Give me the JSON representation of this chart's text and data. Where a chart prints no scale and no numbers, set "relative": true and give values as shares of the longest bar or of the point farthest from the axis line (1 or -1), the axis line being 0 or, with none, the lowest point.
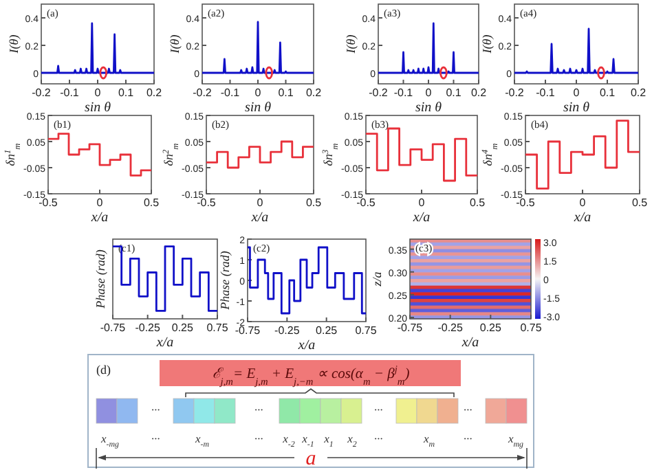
{
  "chart_data": [
    {
      "type": "line",
      "title": "(a)",
      "xlabel": "sin θ",
      "ylabel": "I(θ)",
      "xlim": [
        -0.2,
        0.2
      ],
      "ylim": [
        -0.08,
        0.5
      ],
      "xticks": [
        -0.2,
        -0.1,
        0,
        0.1,
        0.2
      ],
      "yticks": [
        0,
        0.2,
        0.4
      ],
      "series": [
        {
          "color": "#1010c8",
          "x": [
            -0.2,
            -0.143,
            -0.14,
            -0.137,
            -0.083,
            -0.08,
            -0.077,
            -0.063,
            -0.06,
            -0.057,
            -0.043,
            -0.04,
            -0.037,
            -0.023,
            -0.02,
            -0.017,
            -0.003,
            0,
            0.003,
            0.037,
            0.04,
            0.043,
            0.057,
            0.06,
            0.063,
            0.077,
            0.08,
            0.083,
            0.2
          ],
          "values": [
            0,
            0,
            0.05,
            0,
            0,
            0.02,
            0,
            0,
            0.03,
            0,
            0,
            0.03,
            0,
            0,
            0.36,
            0,
            0,
            0.03,
            0,
            0,
            0.03,
            0,
            0,
            0.28,
            0,
            0,
            0.02,
            0,
            0
          ]
        },
        {
          "type": "scatter",
          "marker": "circle",
          "color": "#e8303a",
          "x": [
            0.02
          ],
          "values": [
            0
          ]
        }
      ]
    },
    {
      "type": "line",
      "title": "(a2)",
      "xlabel": "sin θ",
      "ylabel": "I(θ)",
      "xlim": [
        -0.2,
        0.2
      ],
      "ylim": [
        -0.08,
        0.5
      ],
      "xticks": [
        -0.2,
        -0.1,
        0,
        0.1,
        0.2
      ],
      "yticks": [
        0,
        0.2,
        0.4
      ],
      "series": [
        {
          "color": "#1010c8",
          "x": [
            -0.2,
            -0.123,
            -0.12,
            -0.117,
            -0.063,
            -0.06,
            -0.057,
            -0.043,
            -0.04,
            -0.037,
            -0.023,
            -0.02,
            -0.017,
            -0.003,
            0,
            0.003,
            0.017,
            0.02,
            0.023,
            0.057,
            0.06,
            0.063,
            0.077,
            0.08,
            0.083,
            0.097,
            0.1,
            0.103,
            0.2
          ],
          "values": [
            0,
            0,
            0.1,
            0,
            0,
            0.02,
            0,
            0,
            0.03,
            0,
            0,
            0.04,
            0,
            0,
            0.37,
            0,
            0,
            0.03,
            0,
            0,
            0.02,
            0,
            0,
            0.22,
            0,
            0,
            0.01,
            0,
            0
          ]
        },
        {
          "type": "scatter",
          "marker": "circle",
          "color": "#e8303a",
          "x": [
            0.04
          ],
          "values": [
            0
          ]
        }
      ]
    },
    {
      "type": "line",
      "title": "(a3)",
      "xlabel": "sin θ",
      "ylabel": "I(θ)",
      "xlim": [
        -0.2,
        0.2
      ],
      "ylim": [
        -0.08,
        0.5
      ],
      "xticks": [
        -0.2,
        -0.1,
        0,
        0.1,
        0.2
      ],
      "yticks": [
        0,
        0.2,
        0.4
      ],
      "series": [
        {
          "color": "#1010c8",
          "x": [
            -0.2,
            -0.103,
            -0.1,
            -0.097,
            -0.083,
            -0.08,
            -0.077,
            -0.063,
            -0.06,
            -0.057,
            -0.043,
            -0.04,
            -0.037,
            -0.023,
            -0.02,
            -0.017,
            -0.003,
            0,
            0.003,
            0.017,
            0.02,
            0.023,
            0.037,
            0.04,
            0.043,
            0.077,
            0.08,
            0.083,
            0.097,
            0.1,
            0.103,
            0.2
          ],
          "values": [
            0,
            0,
            0.15,
            0,
            0,
            0.02,
            0,
            0,
            0.02,
            0,
            0,
            0.03,
            0,
            0,
            0.03,
            0,
            0,
            0.04,
            0,
            0,
            0.36,
            0,
            0,
            0.03,
            0,
            0,
            0.01,
            0,
            0,
            0.15,
            0,
            0
          ]
        },
        {
          "type": "scatter",
          "marker": "circle",
          "color": "#e8303a",
          "x": [
            0.06
          ],
          "values": [
            0
          ]
        }
      ]
    },
    {
      "type": "line",
      "title": "(a4)",
      "xlabel": "sin θ",
      "ylabel": "I(θ)",
      "xlim": [
        -0.2,
        0.2
      ],
      "ylim": [
        -0.08,
        0.5
      ],
      "xticks": [
        -0.2,
        -0.1,
        0,
        0.1,
        0.2
      ],
      "yticks": [
        0,
        0.2,
        0.4
      ],
      "series": [
        {
          "color": "#1010c8",
          "x": [
            -0.2,
            -0.163,
            -0.16,
            -0.157,
            -0.083,
            -0.08,
            -0.077,
            -0.063,
            -0.06,
            -0.057,
            -0.043,
            -0.04,
            -0.037,
            -0.023,
            -0.02,
            -0.017,
            -0.003,
            0,
            0.003,
            0.017,
            0.02,
            0.023,
            0.037,
            0.04,
            0.043,
            0.057,
            0.06,
            0.063,
            0.097,
            0.1,
            0.103,
            0.117,
            0.12,
            0.123,
            0.2
          ],
          "values": [
            0,
            0,
            0.01,
            0,
            0,
            0.21,
            0,
            0,
            0.03,
            0,
            0,
            0.02,
            0,
            0,
            0.03,
            0,
            0,
            0.02,
            0,
            0,
            0.03,
            0,
            0,
            0.32,
            0,
            0,
            0.02,
            0,
            0,
            0.01,
            0,
            0,
            0.1,
            0,
            0
          ]
        },
        {
          "type": "scatter",
          "marker": "circle",
          "color": "#e8303a",
          "x": [
            0.08
          ],
          "values": [
            0
          ]
        }
      ]
    },
    {
      "type": "step",
      "title": "(b1)",
      "xlabel": "x/a",
      "ylabel": "δn$^{1}$$_{m}$",
      "xlim": [
        -0.5,
        0.5
      ],
      "ylim": [
        -0.15,
        0.15
      ],
      "xticks": [
        -0.5,
        0,
        0.5
      ],
      "yticks": [
        -0.15,
        -0.05,
        0.05,
        0.15
      ],
      "x": [
        -0.5,
        -0.4,
        -0.3,
        -0.2,
        -0.1,
        0,
        0.1,
        0.2,
        0.3,
        0.4,
        0.5
      ],
      "series": [
        {
          "color": "#e8303a",
          "values": [
            0.06,
            0.08,
            0,
            0.02,
            0.04,
            -0.04,
            -0.02,
            0,
            -0.08,
            -0.06,
            -0.06
          ]
        }
      ]
    },
    {
      "type": "step",
      "title": "(b2)",
      "xlabel": "x/a",
      "ylabel": "δn$^{2}$$_{m}$",
      "xlim": [
        -0.5,
        0.5
      ],
      "ylim": [
        -0.15,
        0.15
      ],
      "xticks": [
        -0.5,
        0,
        0.5
      ],
      "yticks": [
        -0.15,
        -0.05,
        0.05,
        0.15
      ],
      "x": [
        -0.5,
        -0.4,
        -0.3,
        -0.2,
        -0.1,
        0,
        0.1,
        0.2,
        0.3,
        0.4,
        0.5
      ],
      "series": [
        {
          "color": "#e8303a",
          "values": [
            -0.03,
            0.01,
            -0.05,
            -0.01,
            0.03,
            -0.03,
            0.01,
            0.05,
            -0.01,
            0.03,
            0.03
          ]
        }
      ]
    },
    {
      "type": "step",
      "title": "(b3)",
      "xlabel": "x/a",
      "ylabel": "δn$^{3}$$_{m}$",
      "xlim": [
        -0.5,
        0.5
      ],
      "ylim": [
        -0.15,
        0.15
      ],
      "xticks": [
        -0.5,
        0,
        0.5
      ],
      "yticks": [
        -0.15,
        -0.05,
        0.05,
        0.15
      ],
      "x": [
        -0.5,
        -0.4,
        -0.3,
        -0.2,
        -0.1,
        0,
        0.1,
        0.2,
        0.3,
        0.4,
        0.5
      ],
      "series": [
        {
          "color": "#e8303a",
          "values": [
            0.08,
            -0.06,
            0.1,
            -0.04,
            0.02,
            -0.02,
            0.04,
            -0.1,
            0.06,
            -0.08,
            -0.08
          ]
        }
      ]
    },
    {
      "type": "step",
      "title": "(b4)",
      "xlabel": "x/a",
      "ylabel": "δn$^{4}$$_{m}$",
      "xlim": [
        -0.5,
        0.5
      ],
      "ylim": [
        -0.15,
        0.15
      ],
      "xticks": [
        -0.5,
        0,
        0.5
      ],
      "yticks": [
        -0.15,
        -0.05,
        0.05,
        0.15
      ],
      "x": [
        -0.5,
        -0.4,
        -0.3,
        -0.2,
        -0.1,
        0,
        0.1,
        0.2,
        0.3,
        0.4,
        0.5
      ],
      "series": [
        {
          "color": "#e8303a",
          "values": [
            0,
            -0.13,
            0.05,
            -0.07,
            0.01,
            0,
            0.07,
            -0.05,
            0.13,
            0.01,
            0.01
          ]
        }
      ]
    },
    {
      "type": "step",
      "title": "(c1)",
      "xlabel": "x/a",
      "ylabel": "Phase (rad)",
      "relative": true,
      "xlim": [
        -0.75,
        0.75
      ],
      "xticks": [
        -0.75,
        -0.25,
        0.25,
        0.75
      ],
      "x": [
        -0.75,
        -0.625,
        -0.5,
        -0.375,
        -0.25,
        -0.125,
        0,
        0.125,
        0.25,
        0.375,
        0.5,
        0.625,
        0.75
      ],
      "series": [
        {
          "color": "#1010c8",
          "values": [
            1,
            0.47,
            0.83,
            0.31,
            0.64,
            0.11,
            1,
            0.47,
            0.83,
            0.31,
            0.64,
            0.11,
            0.11
          ]
        }
      ]
    },
    {
      "type": "step",
      "title": "(c2)",
      "xlabel": "x/a",
      "ylabel": "Phase (rad)",
      "xlim": [
        -0.75,
        0.75
      ],
      "ylim": [
        -2,
        2
      ],
      "xticks": [
        -0.75,
        -0.25,
        0.25,
        0.75
      ],
      "yticks": [
        2,
        1,
        0,
        -1,
        -2
      ],
      "x": [
        -0.75,
        -0.72,
        -0.62,
        -0.53,
        -0.49,
        -0.42,
        -0.32,
        -0.22,
        -0.16,
        -0.08,
        0,
        0.07,
        0.15,
        0.26,
        0.36,
        0.47,
        0.6,
        0.7,
        0.75
      ],
      "series": [
        {
          "color": "#1010c8",
          "values": [
            1.6,
            -0.35,
            1,
            0.35,
            -0.9,
            0.35,
            -1.6,
            0,
            -1,
            1,
            -0.35,
            0.35,
            1.6,
            -0.35,
            0.35,
            -0.9,
            0.35,
            -1.6,
            -1.6
          ]
        }
      ]
    },
    {
      "type": "heatmap",
      "title": "(c3)",
      "xlabel": "x/a",
      "ylabel": "z/a",
      "xlim": [
        -0.75,
        0.75
      ],
      "ylim": [
        0.197,
        0.372
      ],
      "xticks": [
        -0.75,
        -0.25,
        0.25,
        0.75
      ],
      "yticks": [
        {
          "value": 0.2,
          "label": "0.20"
        },
        0.25,
        {
          "value": 0.3,
          "label": "0.30"
        },
        0.35
      ],
      "clim": [
        -3.2,
        3.2
      ],
      "cticks": [
        {
          "value": 3,
          "label": "3.0"
        },
        1.5,
        0,
        -1.5,
        {
          "value": -3,
          "label": "-3.0"
        }
      ],
      "cells": [
        [
          1.5
        ],
        [
          -1.2
        ],
        [
          1.2
        ],
        [
          -1.5
        ],
        [
          1.4
        ],
        [
          -1.2
        ],
        [
          1.2
        ],
        [
          -1.4
        ],
        [
          1.3
        ],
        [
          -1.2
        ],
        [
          1.5
        ],
        [
          -1.3
        ],
        [
          1.2
        ],
        [
          -1
        ],
        [
          2.8
        ],
        [
          -2.6
        ],
        [
          3
        ],
        [
          -2.8
        ],
        [
          2.6
        ],
        [
          -2.4
        ],
        [
          2
        ],
        [
          -2.2
        ],
        [
          1.6
        ],
        [
          -1.4
        ]
      ]
    },
    {
      "type": "other",
      "title": "(d)",
      "annotations": [
        "ℰ$_{j,m}$= E$_{j,m}$ + E$_{j,−m}$ ∝ cos(α$_{m}$ − β$^{j}$$_{m}$)",
        "···",
        "···",
        "···",
        "···",
        "x$_{-m}$$_{g}$",
        "···",
        "x$_{-m}$",
        "···",
        "x$_{-2}$",
        "x$_{-1}$",
        "x$_{1}$",
        "x$_{2}$",
        "···",
        "x$_{m}$",
        "···",
        "x$_{m}$$_{g}$",
        "a"
      ]
    }
  ]
}
